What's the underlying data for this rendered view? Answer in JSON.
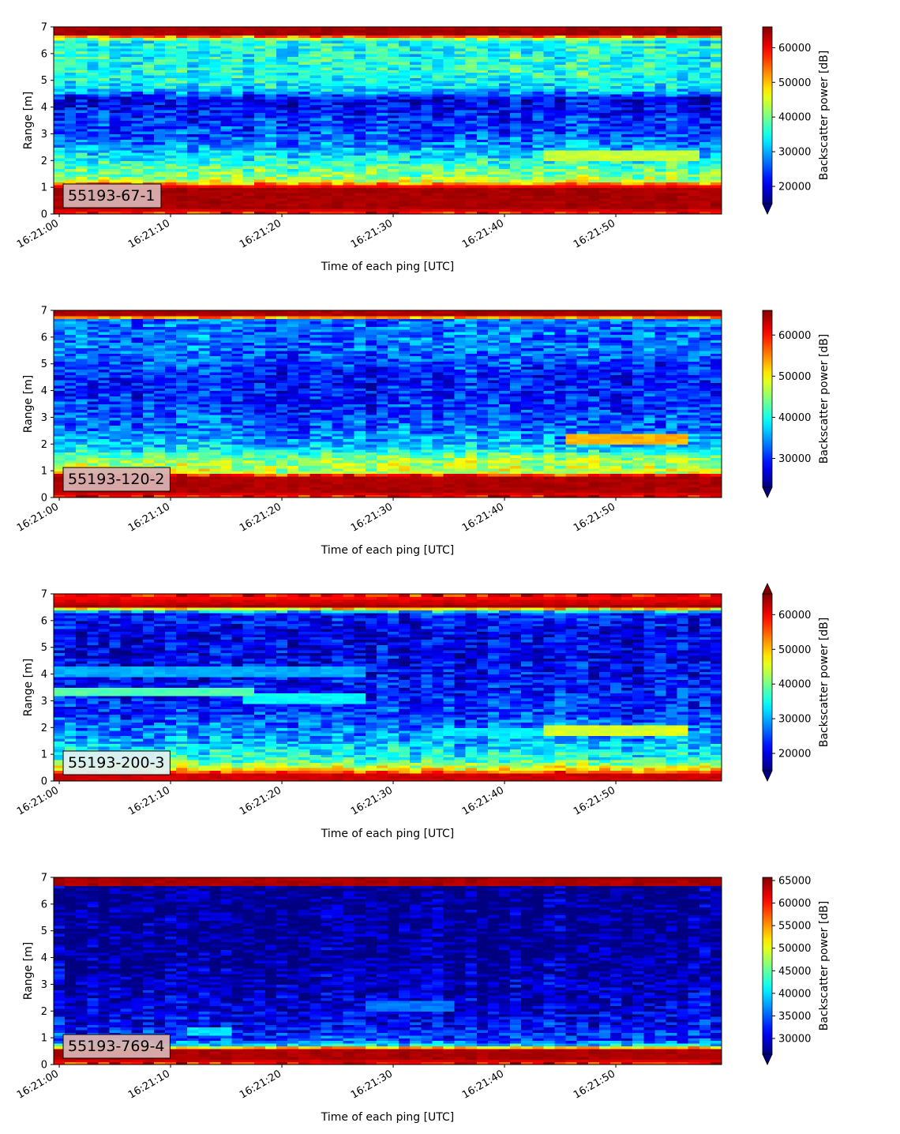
{
  "figure": {
    "x_axis_label": "Time of each ping [UTC]",
    "y_axis_label": "Range [m]",
    "colorbar_label": "Backscatter power [dB]",
    "colormap": "jet",
    "tag_background": "#d9b0b0"
  },
  "chart_data": [
    {
      "type": "heatmap",
      "panel_label": "55193-67-1",
      "x_ticks": [
        "16:21:00",
        "16:21:10",
        "16:21:20",
        "16:21:30",
        "16:21:40",
        "16:21:50"
      ],
      "x_range_seconds": [
        -0.5,
        59.5
      ],
      "y_ticks": [
        "0",
        "1",
        "2",
        "3",
        "4",
        "5",
        "6",
        "7"
      ],
      "ylim": [
        0,
        7
      ],
      "colorbar_ticks": [
        "20000",
        "30000",
        "40000",
        "50000",
        "60000"
      ],
      "colorbar_range": [
        15000,
        66000
      ],
      "colorbar_extend": "min",
      "tag_background": "#d9b0b0",
      "profile": [
        {
          "range_m": 0.0,
          "level": 58000
        },
        {
          "range_m": 0.25,
          "level": 64000
        },
        {
          "range_m": 1.0,
          "level": 64000
        },
        {
          "range_m": 1.15,
          "level": 52000
        },
        {
          "range_m": 1.3,
          "level": 42000
        },
        {
          "range_m": 1.8,
          "level": 38000
        },
        {
          "range_m": 2.3,
          "level": 32000
        },
        {
          "range_m": 2.8,
          "level": 26000
        },
        {
          "range_m": 3.5,
          "level": 24000
        },
        {
          "range_m": 4.3,
          "level": 20000
        },
        {
          "range_m": 4.7,
          "level": 33000
        },
        {
          "range_m": 5.3,
          "level": 36000
        },
        {
          "range_m": 6.5,
          "level": 35000
        },
        {
          "range_m": 6.75,
          "level": 64000
        },
        {
          "range_m": 7.0,
          "level": 64000
        }
      ],
      "features": [
        {
          "t_start": 44,
          "t_end": 57,
          "range_m": 2.2,
          "level": 44000
        }
      ]
    },
    {
      "type": "heatmap",
      "panel_label": "55193-120-2",
      "x_ticks": [
        "16:21:00",
        "16:21:10",
        "16:21:20",
        "16:21:30",
        "16:21:40",
        "16:21:50"
      ],
      "x_range_seconds": [
        -0.5,
        59.5
      ],
      "y_ticks": [
        "0",
        "1",
        "2",
        "3",
        "4",
        "5",
        "6",
        "7"
      ],
      "ylim": [
        0,
        7
      ],
      "colorbar_ticks": [
        "30000",
        "40000",
        "50000",
        "60000"
      ],
      "colorbar_range": [
        23000,
        66000
      ],
      "colorbar_extend": "min",
      "tag_background": "#d9b0b0",
      "profile": [
        {
          "range_m": 0.0,
          "level": 60000
        },
        {
          "range_m": 0.25,
          "level": 64000
        },
        {
          "range_m": 0.8,
          "level": 64000
        },
        {
          "range_m": 0.95,
          "level": 48000
        },
        {
          "range_m": 1.5,
          "level": 45000
        },
        {
          "range_m": 1.8,
          "level": 38000
        },
        {
          "range_m": 2.5,
          "level": 33000
        },
        {
          "range_m": 3.5,
          "level": 30000
        },
        {
          "range_m": 4.5,
          "level": 29000
        },
        {
          "range_m": 5.5,
          "level": 33000
        },
        {
          "range_m": 6.65,
          "level": 33000
        },
        {
          "range_m": 6.8,
          "level": 64000
        },
        {
          "range_m": 7.0,
          "level": 64000
        }
      ],
      "features": [
        {
          "t_start": 46,
          "t_end": 56,
          "range_m": 2.2,
          "level": 53000
        }
      ]
    },
    {
      "type": "heatmap",
      "panel_label": "55193-200-3",
      "x_ticks": [
        "16:21:00",
        "16:21:10",
        "16:21:20",
        "16:21:30",
        "16:21:40",
        "16:21:50"
      ],
      "x_range_seconds": [
        -0.5,
        59.5
      ],
      "y_ticks": [
        "0",
        "1",
        "2",
        "3",
        "4",
        "5",
        "6",
        "7"
      ],
      "ylim": [
        0,
        7
      ],
      "colorbar_ticks": [
        "20000",
        "30000",
        "40000",
        "50000",
        "60000"
      ],
      "colorbar_range": [
        15000,
        66000
      ],
      "colorbar_extend": "both",
      "tag_background": "#e0f0f0",
      "profile": [
        {
          "range_m": 0.0,
          "level": 62000
        },
        {
          "range_m": 0.25,
          "level": 62000
        },
        {
          "range_m": 0.45,
          "level": 48000
        },
        {
          "range_m": 0.8,
          "level": 36000
        },
        {
          "range_m": 1.5,
          "level": 30000
        },
        {
          "range_m": 2.5,
          "level": 24000
        },
        {
          "range_m": 4.0,
          "level": 21000
        },
        {
          "range_m": 5.5,
          "level": 20000
        },
        {
          "range_m": 6.3,
          "level": 23000
        },
        {
          "range_m": 6.55,
          "level": 64000
        },
        {
          "range_m": 7.0,
          "level": 58000
        }
      ],
      "features": [
        {
          "t_start": 0,
          "t_end": 17,
          "range_m": 3.35,
          "level": 38000
        },
        {
          "t_start": 17,
          "t_end": 27,
          "range_m": 3.1,
          "level": 34000
        },
        {
          "t_start": 0,
          "t_end": 27,
          "range_m": 4.1,
          "level": 30000
        },
        {
          "t_start": 34,
          "t_end": 44,
          "range_m": 1.85,
          "level": 33000
        },
        {
          "t_start": 44,
          "t_end": 56,
          "range_m": 1.9,
          "level": 45000
        }
      ]
    },
    {
      "type": "heatmap",
      "panel_label": "55193-769-4",
      "x_ticks": [
        "16:21:00",
        "16:21:10",
        "16:21:20",
        "16:21:30",
        "16:21:40",
        "16:21:50"
      ],
      "x_range_seconds": [
        -0.5,
        59.5
      ],
      "y_ticks": [
        "0",
        "1",
        "2",
        "3",
        "4",
        "5",
        "6",
        "7"
      ],
      "ylim": [
        0,
        7
      ],
      "colorbar_ticks": [
        "30000",
        "35000",
        "40000",
        "45000",
        "50000",
        "55000",
        "60000",
        "65000"
      ],
      "colorbar_range": [
        26500,
        65700
      ],
      "colorbar_extend": "min",
      "tag_background": "#d9b0b0",
      "profile": [
        {
          "range_m": 0.0,
          "level": 60000
        },
        {
          "range_m": 0.25,
          "level": 64000
        },
        {
          "range_m": 0.6,
          "level": 64000
        },
        {
          "range_m": 0.7,
          "level": 42000
        },
        {
          "range_m": 0.9,
          "level": 34000
        },
        {
          "range_m": 1.5,
          "level": 31000
        },
        {
          "range_m": 2.5,
          "level": 29500
        },
        {
          "range_m": 4.0,
          "level": 27500
        },
        {
          "range_m": 6.65,
          "level": 27000
        },
        {
          "range_m": 6.7,
          "level": 64000
        },
        {
          "range_m": 7.0,
          "level": 64000
        }
      ],
      "features": [
        {
          "t_start": 28,
          "t_end": 35,
          "range_m": 2.2,
          "level": 36000
        },
        {
          "t_start": 12,
          "t_end": 15,
          "range_m": 1.25,
          "level": 40000
        }
      ]
    }
  ]
}
